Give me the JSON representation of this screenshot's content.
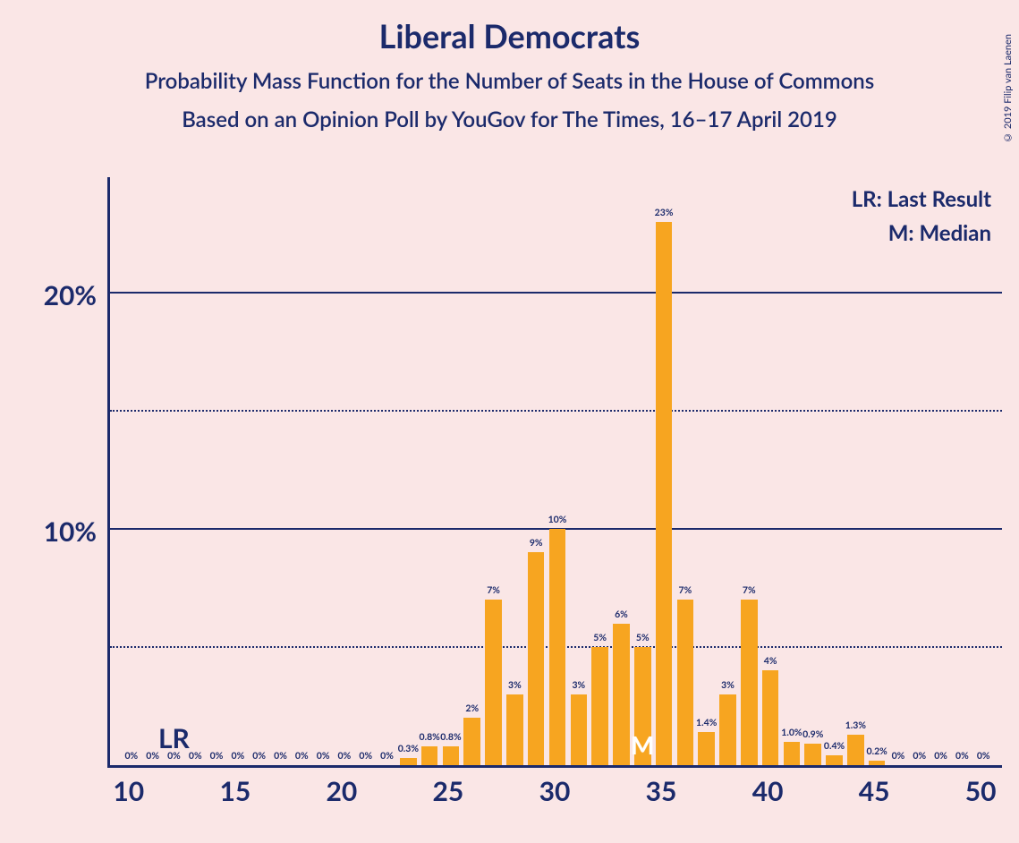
{
  "title": "Liberal Democrats",
  "subtitle1": "Probability Mass Function for the Number of Seats in the House of Commons",
  "subtitle2": "Based on an Opinion Poll by YouGov for The Times, 16–17 April 2019",
  "copyright": "© 2019 Filip van Laenen",
  "legend": {
    "lr": "LR: Last Result",
    "m": "M: Median"
  },
  "chart": {
    "type": "bar",
    "bar_color": "#f7a520",
    "axis_color": "#1b2a6b",
    "background_color": "#fae6e6",
    "grid_solid_color": "#1b2a6b",
    "grid_dotted_color": "#1b2a6b",
    "title_fontsize": 36,
    "subtitle_fontsize": 24,
    "axis_label_fontsize": 30,
    "bar_label_fontsize": 10.5,
    "xlim": [
      9,
      51
    ],
    "ylim": [
      0,
      25
    ],
    "xtick_start": 10,
    "xtick_step": 5,
    "xtick_end": 50,
    "ytick_major": [
      10,
      20
    ],
    "ytick_minor": [
      5,
      15
    ],
    "bar_width_ratio": 0.78,
    "lr_x": 12,
    "median_x": 34,
    "bars": [
      {
        "x": 10,
        "v": 0,
        "label": "0%"
      },
      {
        "x": 11,
        "v": 0,
        "label": "0%"
      },
      {
        "x": 12,
        "v": 0,
        "label": "0%"
      },
      {
        "x": 13,
        "v": 0,
        "label": "0%"
      },
      {
        "x": 14,
        "v": 0,
        "label": "0%"
      },
      {
        "x": 15,
        "v": 0,
        "label": "0%"
      },
      {
        "x": 16,
        "v": 0,
        "label": "0%"
      },
      {
        "x": 17,
        "v": 0,
        "label": "0%"
      },
      {
        "x": 18,
        "v": 0,
        "label": "0%"
      },
      {
        "x": 19,
        "v": 0,
        "label": "0%"
      },
      {
        "x": 20,
        "v": 0,
        "label": "0%"
      },
      {
        "x": 21,
        "v": 0,
        "label": "0%"
      },
      {
        "x": 22,
        "v": 0,
        "label": "0%"
      },
      {
        "x": 23,
        "v": 0.3,
        "label": "0.3%"
      },
      {
        "x": 24,
        "v": 0.8,
        "label": "0.8%"
      },
      {
        "x": 25,
        "v": 0.8,
        "label": "0.8%"
      },
      {
        "x": 26,
        "v": 2,
        "label": "2%"
      },
      {
        "x": 27,
        "v": 7,
        "label": "7%"
      },
      {
        "x": 28,
        "v": 3,
        "label": "3%"
      },
      {
        "x": 29,
        "v": 9,
        "label": "9%"
      },
      {
        "x": 30,
        "v": 10,
        "label": "10%"
      },
      {
        "x": 31,
        "v": 3,
        "label": "3%"
      },
      {
        "x": 32,
        "v": 5,
        "label": "5%"
      },
      {
        "x": 33,
        "v": 6,
        "label": "6%"
      },
      {
        "x": 34,
        "v": 5,
        "label": "5%"
      },
      {
        "x": 35,
        "v": 23,
        "label": "23%"
      },
      {
        "x": 36,
        "v": 7,
        "label": "7%"
      },
      {
        "x": 37,
        "v": 1.4,
        "label": "1.4%"
      },
      {
        "x": 38,
        "v": 3,
        "label": "3%"
      },
      {
        "x": 39,
        "v": 7,
        "label": "7%"
      },
      {
        "x": 40,
        "v": 4,
        "label": "4%"
      },
      {
        "x": 41,
        "v": 1.0,
        "label": "1.0%"
      },
      {
        "x": 42,
        "v": 0.9,
        "label": "0.9%"
      },
      {
        "x": 43,
        "v": 0.4,
        "label": "0.4%"
      },
      {
        "x": 44,
        "v": 1.3,
        "label": "1.3%"
      },
      {
        "x": 45,
        "v": 0.2,
        "label": "0.2%"
      },
      {
        "x": 46,
        "v": 0,
        "label": "0%"
      },
      {
        "x": 47,
        "v": 0,
        "label": "0%"
      },
      {
        "x": 48,
        "v": 0,
        "label": "0%"
      },
      {
        "x": 49,
        "v": 0,
        "label": "0%"
      },
      {
        "x": 50,
        "v": 0,
        "label": "0%"
      }
    ]
  }
}
